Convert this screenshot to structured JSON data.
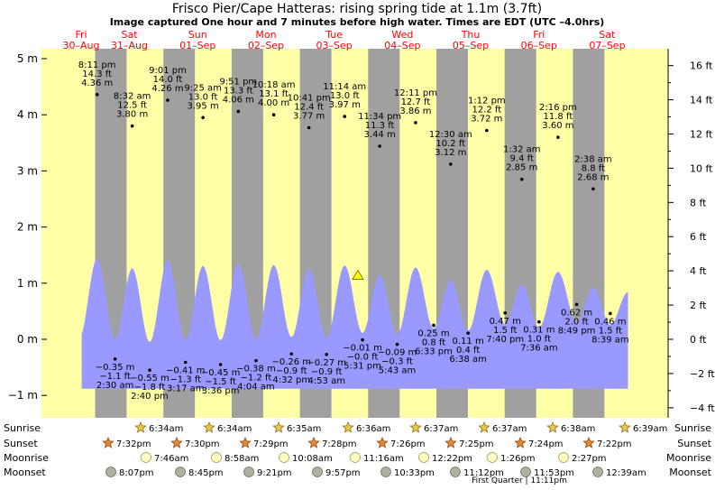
{
  "title": "Frisco Pier/Cape Hatteras: rising  spring tide at 1.1m (3.7ft)",
  "subtitle": "Image captured One hour and 7 minutes before high water. Times are EDT (UTC –4.0hrs)",
  "colors": {
    "day": "#ffffa8",
    "night": "#a0a0a0",
    "tide": "#9999ff",
    "date": "#ff0000",
    "text": "#000000"
  },
  "chart_data": {
    "type": "area",
    "y_axis_left": {
      "unit": "m",
      "ylim": [
        -1.15,
        5.05
      ],
      "ticks": [
        {
          "v": 5,
          "label": "5 m"
        },
        {
          "v": 4,
          "label": "4 m"
        },
        {
          "v": 3,
          "label": "3 m"
        },
        {
          "v": 2,
          "label": "2 m"
        },
        {
          "v": 1,
          "label": "1 m"
        },
        {
          "v": 0,
          "label": "0 m"
        },
        {
          "v": -1,
          "label": "−1 m"
        }
      ]
    },
    "y_axis_right": {
      "unit": "ft",
      "ticks": [
        {
          "v": 16,
          "label": "16 ft"
        },
        {
          "v": 14,
          "label": "14 ft"
        },
        {
          "v": 12,
          "label": "12 ft"
        },
        {
          "v": 10,
          "label": "10 ft"
        },
        {
          "v": 8,
          "label": "8 ft"
        },
        {
          "v": 6,
          "label": "6 ft"
        },
        {
          "v": 4,
          "label": "4 ft"
        },
        {
          "v": 2,
          "label": "2 ft"
        },
        {
          "v": 0,
          "label": "0 ft"
        },
        {
          "v": -2,
          "label": "−2 ft"
        },
        {
          "v": -4,
          "label": "−4 ft"
        }
      ]
    },
    "days": [
      {
        "dow": "Fri",
        "date": "30–Aug"
      },
      {
        "dow": "Sat",
        "date": "31–Aug"
      },
      {
        "dow": "Sun",
        "date": "01–Sep"
      },
      {
        "dow": "Mon",
        "date": "02–Sep"
      },
      {
        "dow": "Tue",
        "date": "03–Sep"
      },
      {
        "dow": "Wed",
        "date": "04–Sep"
      },
      {
        "dow": "Thu",
        "date": "05–Sep"
      },
      {
        "dow": "Fri",
        "date": "06–Sep"
      },
      {
        "dow": "Sat",
        "date": "07–Sep"
      }
    ],
    "current": {
      "label": "rising spring tide",
      "height_m": 1.1,
      "height_ft": 3.7
    },
    "high_tides": [
      {
        "time": "8:11 pm",
        "day": 0.841,
        "ft": "14.3 ft",
        "m": "4.36 m",
        "h": 4.36
      },
      {
        "time": "8:32 am",
        "day": 1.3556,
        "ft": "12.5 ft",
        "m": "3.80 m",
        "h": 3.8
      },
      {
        "time": "9:01 pm",
        "day": 1.8757,
        "ft": "14.0 ft",
        "m": "4.26 m",
        "h": 4.26
      },
      {
        "time": "9:25 am",
        "day": 2.3924,
        "ft": "13.0 ft",
        "m": "3.95 m",
        "h": 3.95
      },
      {
        "time": "9:51 pm",
        "day": 2.9104,
        "ft": "13.3 ft",
        "m": "4.06 m",
        "h": 4.06
      },
      {
        "time": "10:18 am",
        "day": 3.4292,
        "ft": "13.1 ft",
        "m": "4.00 m",
        "h": 4.0
      },
      {
        "time": "10:41 pm",
        "day": 3.9451,
        "ft": "12.4 ft",
        "m": "3.77 m",
        "h": 3.77
      },
      {
        "time": "11:14 am",
        "day": 4.4681,
        "ft": "13.0 ft",
        "m": "3.97 m",
        "h": 3.97
      },
      {
        "time": "11:34 pm",
        "day": 4.9819,
        "ft": "11.3 ft",
        "m": "3.44 m",
        "h": 3.44
      },
      {
        "time": "12:11 pm",
        "day": 5.5076,
        "ft": "12.7 ft",
        "m": "3.86 m",
        "h": 3.86
      },
      {
        "time": "12:30 am",
        "day": 6.0208,
        "ft": "10.2 ft",
        "m": "3.12 m",
        "h": 3.12
      },
      {
        "time": "1:12 pm",
        "day": 6.55,
        "ft": "12.2 ft",
        "m": "3.72 m",
        "h": 3.72
      },
      {
        "time": "1:32 am",
        "day": 7.0639,
        "ft": "9.4 ft",
        "m": "2.85 m",
        "h": 2.85
      },
      {
        "time": "2:16 pm",
        "day": 7.5944,
        "ft": "11.8 ft",
        "m": "3.60 m",
        "h": 3.6
      },
      {
        "time": "2:38 am",
        "day": 8.1097,
        "ft": "8.8 ft",
        "m": "2.68 m",
        "h": 2.68
      }
    ],
    "low_tides": [
      {
        "m": "−0.35 m",
        "ft": "−1.1 ft",
        "time": "2:30 am",
        "day": 1.1042,
        "h": -0.35
      },
      {
        "m": "−0.55 m",
        "ft": "−1.8 ft",
        "time": "2:40 pm",
        "day": 1.6111,
        "h": -0.55
      },
      {
        "m": "−0.41 m",
        "ft": "−1.3 ft",
        "time": "3:17 am",
        "day": 2.1368,
        "h": -0.41
      },
      {
        "m": "−0.45 m",
        "ft": "−1.5 ft",
        "time": "3:36 pm",
        "day": 2.65,
        "h": -0.45
      },
      {
        "m": "−0.38 m",
        "ft": "−1.2 ft",
        "time": "4:04 am",
        "day": 3.1694,
        "h": -0.38
      },
      {
        "m": "−0.26 m",
        "ft": "−0.9 ft",
        "time": "4:32 pm",
        "day": 3.6889,
        "h": -0.26
      },
      {
        "m": "−0.27 m",
        "ft": "−0.9 ft",
        "time": "4:53 am",
        "day": 4.2035,
        "h": -0.27
      },
      {
        "m": "−0.01 m",
        "ft": "−0.0 ft",
        "time": "5:31 pm",
        "day": 4.7299,
        "h": -0.01
      },
      {
        "m": "−0.09 m",
        "ft": "−0.3 ft",
        "time": "5:43 am",
        "day": 5.2382,
        "h": -0.09
      },
      {
        "m": "0.25 m",
        "ft": "0.8 ft",
        "time": "6:33 pm",
        "day": 5.7729,
        "h": 0.25
      },
      {
        "m": "0.11 m",
        "ft": "0.4 ft",
        "time": "6:38 am",
        "day": 6.2764,
        "h": 0.11
      },
      {
        "m": "0.47 m",
        "ft": "1.5 ft",
        "time": "7:40 pm",
        "day": 6.8194,
        "h": 0.47
      },
      {
        "m": "0.31 m",
        "ft": "1.0 ft",
        "time": "7:36 am",
        "day": 7.3167,
        "h": 0.31
      },
      {
        "m": "0.62 m",
        "ft": "2.0 ft",
        "time": "8:49 pm",
        "day": 7.8674,
        "h": 0.62
      },
      {
        "m": "0.46 m",
        "ft": "1.5 ft",
        "time": "8:39 am",
        "day": 8.3604,
        "h": 0.46
      }
    ]
  },
  "almanac": {
    "row_labels": [
      "Sunrise",
      "Sunset",
      "Moonrise",
      "Moonset"
    ],
    "sunrise": [
      {
        "day": 1,
        "time": "6:34am"
      },
      {
        "day": 2,
        "time": "6:34am"
      },
      {
        "day": 3,
        "time": "6:35am"
      },
      {
        "day": 4,
        "time": "6:36am"
      },
      {
        "day": 5,
        "time": "6:37am"
      },
      {
        "day": 6,
        "time": "6:37am"
      },
      {
        "day": 7,
        "time": "6:38am"
      },
      {
        "day": 8,
        "time": "6:39am"
      }
    ],
    "sunset": [
      {
        "day": 0,
        "time": "7:32pm"
      },
      {
        "day": 1,
        "time": "7:30pm"
      },
      {
        "day": 2,
        "time": "7:29pm"
      },
      {
        "day": 3,
        "time": "7:28pm"
      },
      {
        "day": 4,
        "time": "7:26pm"
      },
      {
        "day": 5,
        "time": "7:25pm"
      },
      {
        "day": 6,
        "time": "7:24pm"
      },
      {
        "day": 7,
        "time": "7:22pm"
      }
    ],
    "moonrise": [
      {
        "day": 1,
        "time": "7:46am"
      },
      {
        "day": 2,
        "time": "8:58am"
      },
      {
        "day": 3,
        "time": "10:08am"
      },
      {
        "day": 4,
        "time": "11:16am"
      },
      {
        "day": 5,
        "time": "12:22pm"
      },
      {
        "day": 6,
        "time": "1:26pm"
      },
      {
        "day": 7,
        "time": "2:27pm"
      }
    ],
    "moonset": [
      {
        "day": 0,
        "time": "8:07pm"
      },
      {
        "day": 1,
        "time": "8:45pm"
      },
      {
        "day": 2,
        "time": "9:21pm"
      },
      {
        "day": 3,
        "time": "9:57pm"
      },
      {
        "day": 4,
        "time": "10:33pm"
      },
      {
        "day": 5,
        "time": "11:12pm"
      },
      {
        "day": 6,
        "time": "11:53pm"
      },
      {
        "day": 8,
        "time": "12:39am"
      }
    ],
    "moon_phase": "First Quarter | 11:11pm"
  }
}
